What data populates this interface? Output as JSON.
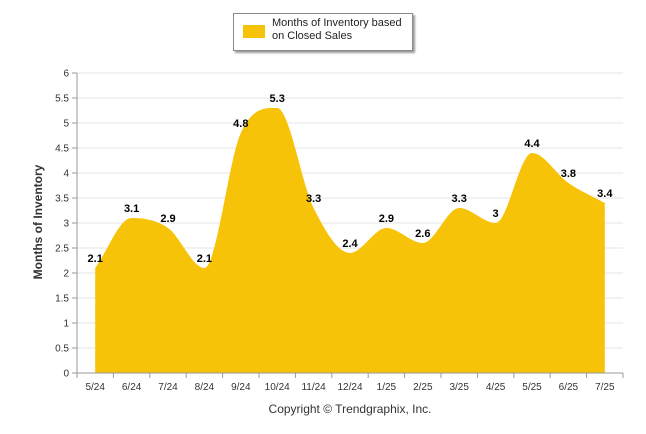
{
  "chart_data": {
    "type": "area",
    "categories": [
      "5/24",
      "6/24",
      "7/24",
      "8/24",
      "9/24",
      "10/24",
      "11/24",
      "12/24",
      "1/25",
      "2/25",
      "3/25",
      "4/25",
      "5/25",
      "6/25",
      "7/25"
    ],
    "series": [
      {
        "name": "Months of Inventory based on Closed Sales",
        "values": [
          2.1,
          3.1,
          2.9,
          2.1,
          4.8,
          5.3,
          3.3,
          2.4,
          2.9,
          2.6,
          3.3,
          3,
          4.4,
          3.8,
          3.4
        ],
        "color": "#f7c308"
      }
    ],
    "data_labels": [
      "2.1",
      "3.1",
      "2.9",
      "2.1",
      "4.8",
      "5.3",
      "3.3",
      "2.4",
      "2.9",
      "2.6",
      "3.3",
      "3",
      "4.4",
      "3.8",
      "3.4"
    ],
    "ylabel": "Months of Inventory",
    "xlabel": "",
    "ylim": [
      0,
      6
    ],
    "yticks": [
      "0",
      "0.5",
      "1",
      "1.5",
      "2",
      "2.5",
      "3",
      "3.5",
      "4",
      "4.5",
      "5",
      "5.5",
      "6"
    ],
    "grid": true,
    "legend_position": "top-center"
  },
  "copyright": "Copyright © Trendgraphix, Inc."
}
